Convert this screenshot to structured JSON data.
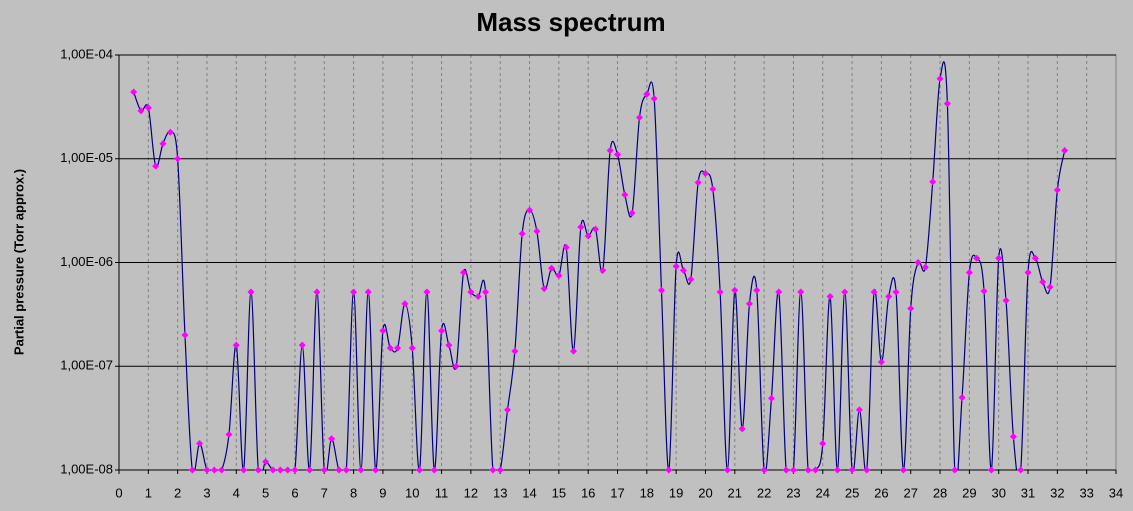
{
  "chart_data": {
    "type": "line",
    "title": "Mass spectrum",
    "y_label": "Partial pressure (Torr approx.)",
    "x": [
      0.5,
      0.75,
      1,
      1.25,
      1.5,
      1.75,
      2,
      2.25,
      2.5,
      2.75,
      3,
      3.25,
      3.5,
      3.75,
      4,
      4.25,
      4.5,
      4.75,
      5,
      5.25,
      5.5,
      5.75,
      6,
      6.25,
      6.5,
      6.75,
      7,
      7.25,
      7.5,
      7.75,
      8,
      8.25,
      8.5,
      8.75,
      9,
      9.25,
      9.5,
      9.75,
      10,
      10.25,
      10.5,
      10.75,
      11,
      11.25,
      11.5,
      11.75,
      12,
      12.25,
      12.5,
      12.75,
      13,
      13.25,
      13.5,
      13.75,
      14,
      14.25,
      14.5,
      14.75,
      15,
      15.25,
      15.5,
      15.75,
      16,
      16.25,
      16.5,
      16.75,
      17,
      17.25,
      17.5,
      17.75,
      18,
      18.25,
      18.5,
      18.75,
      19,
      19.25,
      19.5,
      19.75,
      20,
      20.25,
      20.5,
      20.75,
      21,
      21.25,
      21.5,
      21.75,
      22,
      22.25,
      22.5,
      22.75,
      23,
      23.25,
      23.5,
      23.75,
      24,
      24.25,
      24.5,
      24.75,
      25,
      25.25,
      25.5,
      25.75,
      26,
      26.25,
      26.5,
      26.75,
      27,
      27.25,
      27.5,
      27.75,
      28,
      28.25,
      28.5,
      28.75,
      29,
      29.25,
      29.5,
      29.75,
      30,
      30.25,
      30.5,
      30.75,
      31,
      31.25,
      31.5,
      31.75,
      32,
      32.25
    ],
    "values": [
      4.4e-05,
      2.9e-05,
      3.1e-05,
      8.5e-06,
      1.4e-05,
      1.8e-05,
      1e-05,
      2e-07,
      1e-08,
      1.8e-08,
      1e-08,
      1e-08,
      1e-08,
      2.2e-08,
      1.6e-07,
      1e-08,
      5.2e-07,
      1e-08,
      1.2e-08,
      1e-08,
      1e-08,
      1e-08,
      1e-08,
      1.6e-07,
      1e-08,
      5.2e-07,
      1e-08,
      2e-08,
      1e-08,
      1e-08,
      5.2e-07,
      1e-08,
      5.2e-07,
      1e-08,
      2.2e-07,
      1.5e-07,
      1.5e-07,
      4e-07,
      1.5e-07,
      1e-08,
      5.2e-07,
      1e-08,
      2.2e-07,
      1.6e-07,
      1e-07,
      8e-07,
      5.2e-07,
      4.7e-07,
      5.2e-07,
      1e-08,
      1e-08,
      3.8e-08,
      1.4e-07,
      1.9e-06,
      3.2e-06,
      2e-06,
      5.6e-07,
      8.8e-07,
      7.5e-07,
      1.4e-06,
      1.4e-07,
      2.2e-06,
      1.8e-06,
      2.1e-06,
      8.4e-07,
      1.2e-05,
      1.1e-05,
      4.5e-06,
      3e-06,
      2.5e-05,
      4.2e-05,
      3.8e-05,
      5.4e-07,
      1e-08,
      9.2e-07,
      8.4e-07,
      6.9e-07,
      5.9e-06,
      7.2e-06,
      5.1e-06,
      5.2e-07,
      1e-08,
      5.4e-07,
      2.5e-08,
      4e-07,
      5.4e-07,
      1e-08,
      4.9e-08,
      5.2e-07,
      1e-08,
      1e-08,
      5.2e-07,
      1e-08,
      1e-08,
      1.8e-08,
      4.7e-07,
      1e-08,
      5.2e-07,
      1e-08,
      3.8e-08,
      1e-08,
      5.2e-07,
      1.1e-07,
      4.7e-07,
      5.2e-07,
      1e-08,
      3.6e-07,
      1e-06,
      9e-07,
      6e-06,
      5.9e-05,
      3.4e-05,
      1e-08,
      5e-08,
      8e-07,
      1.1e-06,
      5.3e-07,
      1e-08,
      1.1e-06,
      4.3e-07,
      2.1e-08,
      1e-08,
      8e-07,
      1.1e-06,
      6.5e-07,
      5.8e-07,
      5e-06,
      1.2e-05
    ],
    "color": "#000080",
    "marker_color": "#ff00ff",
    "xlim": [
      0,
      34
    ],
    "xticks": [
      0,
      1,
      2,
      3,
      4,
      5,
      6,
      7,
      8,
      9,
      10,
      11,
      12,
      13,
      14,
      15,
      16,
      17,
      18,
      19,
      20,
      21,
      22,
      23,
      24,
      25,
      26,
      27,
      28,
      29,
      30,
      31,
      32,
      33,
      34
    ],
    "ylim": [
      1e-08,
      0.0001
    ],
    "log_y": true,
    "yticks": [
      {
        "value": 1e-08,
        "label": "1,00E-08"
      },
      {
        "value": 1e-07,
        "label": "1,00E-07"
      },
      {
        "value": 1e-06,
        "label": "1,00E-06"
      },
      {
        "value": 1e-05,
        "label": "1,00E-05"
      },
      {
        "value": 0.0001,
        "label": "1,00E-04"
      }
    ],
    "grid": true
  }
}
